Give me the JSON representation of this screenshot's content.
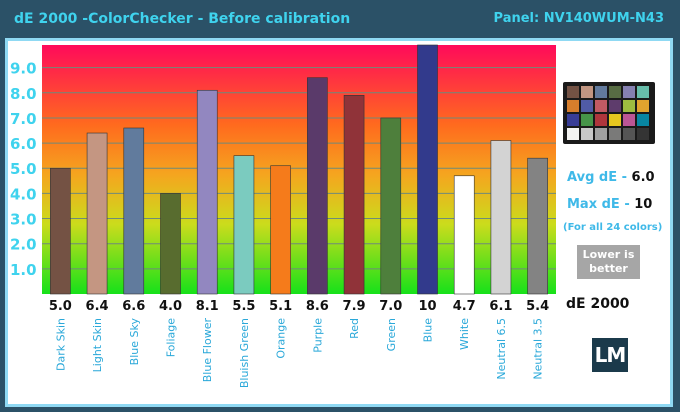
{
  "header": {
    "title": "dE 2000 -ColorChecker - Before calibration",
    "panel": "Panel: NV140WUM-N43"
  },
  "chart_data": {
    "type": "bar",
    "categories": [
      "Dark Skin",
      "Light Skin",
      "Blue Sky",
      "Foliage",
      "Blue Flower",
      "Bluish Green",
      "Orange",
      "Purple",
      "Red",
      "Green",
      "Blue",
      "White",
      "Neutral 6.5",
      "Neutral 3.5"
    ],
    "values": [
      5.0,
      6.4,
      6.6,
      4.0,
      8.1,
      5.5,
      5.1,
      8.6,
      7.9,
      7.0,
      10,
      4.7,
      6.1,
      5.4
    ],
    "value_labels": [
      "5.0",
      "6.4",
      "6.6",
      "4.0",
      "8.1",
      "5.5",
      "5.1",
      "8.6",
      "7.9",
      "7.0",
      "10",
      "4.7",
      "6.1",
      "5.4"
    ],
    "colors": [
      "#735244",
      "#c29682",
      "#627a9d",
      "#576c43",
      "#8580b1",
      "#67bdaa",
      "#d67e2c",
      "#505ba6",
      "#c15a63",
      "#5e3c6c",
      "#383d96",
      "#f3f3f2",
      "#c8c8c8",
      "#7a7a79"
    ],
    "bar_colors": [
      "#745244",
      "#c49682",
      "#617b9d",
      "#586c2f",
      "#9287c0",
      "#7bcbbf",
      "#f57b1b",
      "#5a3a6a",
      "#903339",
      "#4e7f3c",
      "#323a8c",
      "#ffffff",
      "#d3d3d3",
      "#838383"
    ],
    "yticks": [
      "1.0",
      "2.0",
      "3.0",
      "4.0",
      "5.0",
      "6.0",
      "7.0",
      "8.0",
      "9.0"
    ],
    "ylim": [
      0,
      9.9
    ],
    "xlabel": "dE 2000",
    "grid": true
  },
  "checker_colors": [
    "#735244",
    "#c29682",
    "#627a9d",
    "#576c43",
    "#8580b1",
    "#67bdaa",
    "#d67e2c",
    "#505ba6",
    "#c15a63",
    "#5e3c6c",
    "#9dbc40",
    "#e0a32e",
    "#383d96",
    "#469449",
    "#af363c",
    "#e7c71f",
    "#bb5695",
    "#0885a1",
    "#f3f3f2",
    "#c8c8c8",
    "#a0a0a0",
    "#7a7a79",
    "#555555",
    "#343434"
  ],
  "summary": {
    "avg_label": "Avg dE - ",
    "avg_value": "6.0",
    "max_label": "Max dE - ",
    "max_value": "10",
    "note": "(For all 24 colors)",
    "lower_line1": "Lower is",
    "lower_line2": "better"
  },
  "logo_text": "LM"
}
